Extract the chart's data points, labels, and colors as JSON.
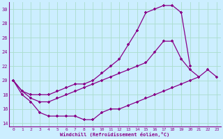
{
  "xlabel": "Windchill (Refroidissement éolien,°C)",
  "background_color": "#cceeff",
  "line_color": "#880088",
  "xlim": [
    -0.5,
    23.5
  ],
  "ylim": [
    13.5,
    31.0
  ],
  "yticks": [
    14,
    16,
    18,
    20,
    22,
    24,
    26,
    28,
    30
  ],
  "xticks": [
    0,
    1,
    2,
    3,
    4,
    5,
    6,
    7,
    8,
    9,
    10,
    11,
    12,
    13,
    14,
    15,
    16,
    17,
    18,
    19,
    20,
    21,
    22,
    23
  ],
  "grid_color": "#aaddcc",
  "curve_top_x": [
    0,
    1,
    2,
    3,
    4,
    5,
    6,
    7,
    8,
    9,
    10,
    11,
    12,
    13,
    14,
    15,
    16,
    17,
    18,
    19,
    20
  ],
  "curve_top_y": [
    20,
    18.5,
    18,
    18,
    18,
    18.5,
    19,
    19.5,
    19.5,
    20,
    21,
    22,
    23,
    25,
    27,
    29.5,
    30.0,
    30.5,
    30.5,
    29.5,
    22
  ],
  "curve_mid_x": [
    0,
    1,
    2,
    3,
    4,
    5,
    6,
    7,
    8,
    9,
    10,
    11,
    12,
    13,
    14,
    15,
    16,
    17,
    18,
    19,
    20,
    21,
    22,
    23
  ],
  "curve_mid_y": [
    20,
    18.5,
    17.5,
    17,
    17,
    17.5,
    18,
    18.5,
    19,
    19.5,
    20,
    20.5,
    21,
    21.5,
    22,
    22.5,
    24,
    25.5,
    25.5,
    23,
    21.5,
    20.5,
    21.5,
    20.5
  ],
  "curve_bot_x": [
    0,
    1,
    2,
    3,
    4,
    5,
    6,
    7,
    8,
    9,
    10,
    11,
    12,
    13,
    14,
    15,
    16,
    17,
    18,
    19,
    20,
    21,
    22,
    23
  ],
  "curve_bot_y": [
    20,
    18,
    17,
    15.5,
    15,
    15,
    15,
    15,
    14.5,
    14.5,
    15.5,
    16,
    16,
    16.5,
    17,
    17.5,
    18,
    18.5,
    19,
    19.5,
    20,
    20.5,
    null,
    null
  ]
}
